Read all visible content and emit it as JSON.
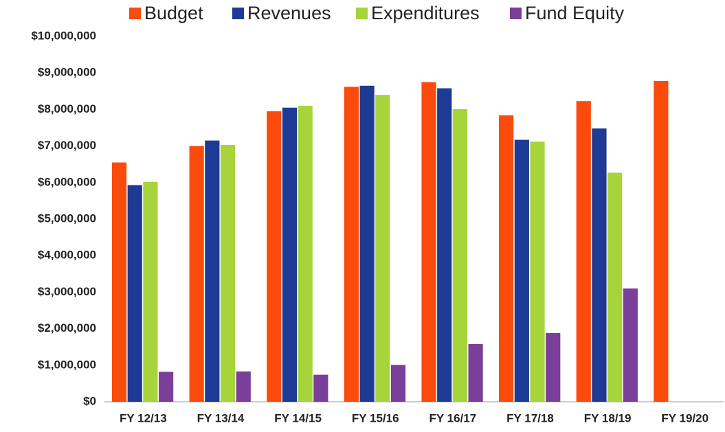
{
  "chart_data": {
    "type": "bar",
    "categories": [
      "FY 12/13",
      "FY 13/14",
      "FY 14/15",
      "FY 15/16",
      "FY 16/17",
      "FY 17/18",
      "FY 18/19",
      "FY 19/20"
    ],
    "series": [
      {
        "name": "Budget",
        "color": "#fb4b0c",
        "values": [
          6550000,
          7000000,
          7950000,
          8620000,
          8750000,
          7840000,
          8230000,
          8780000
        ]
      },
      {
        "name": "Revenues",
        "color": "#1d3a94",
        "values": [
          5930000,
          7150000,
          8050000,
          8650000,
          8580000,
          7170000,
          7480000,
          null
        ]
      },
      {
        "name": "Expenditures",
        "color": "#a7d43b",
        "values": [
          6020000,
          7030000,
          8100000,
          8400000,
          8010000,
          7120000,
          6270000,
          null
        ]
      },
      {
        "name": "Fund Equity",
        "color": "#7a3f98",
        "values": [
          820000,
          830000,
          740000,
          1010000,
          1580000,
          1880000,
          3100000,
          null
        ]
      }
    ],
    "ylim": [
      0,
      10000000
    ],
    "yticks": [
      {
        "value": 0,
        "label": "$0"
      },
      {
        "value": 1000000,
        "label": "$1,000,000"
      },
      {
        "value": 2000000,
        "label": "$2,000,000"
      },
      {
        "value": 3000000,
        "label": "$3,000,000"
      },
      {
        "value": 4000000,
        "label": "$4,000,000"
      },
      {
        "value": 5000000,
        "label": "$5,000,000"
      },
      {
        "value": 6000000,
        "label": "$6,000,000"
      },
      {
        "value": 7000000,
        "label": "$7,000,000"
      },
      {
        "value": 8000000,
        "label": "$8,000,000"
      },
      {
        "value": 9000000,
        "label": "$9,000,000"
      },
      {
        "value": 10000000,
        "label": "$10,000,000"
      }
    ],
    "grid": false,
    "legend": "top"
  }
}
